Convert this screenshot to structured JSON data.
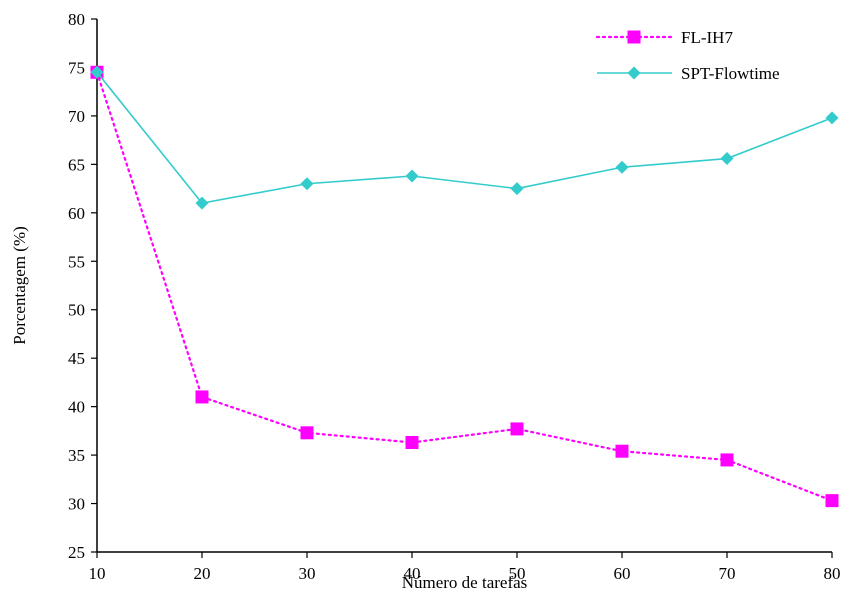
{
  "chart_data": {
    "type": "line",
    "xlabel": "Número de tarefas",
    "ylabel": "Porcentagem (%)",
    "x": [
      10,
      20,
      30,
      40,
      50,
      60,
      70,
      80
    ],
    "xlim": [
      10,
      80
    ],
    "ylim": [
      25,
      80
    ],
    "x_ticks": [
      "10",
      "20",
      "30",
      "40",
      "50",
      "60",
      "70",
      "80"
    ],
    "y_ticks": [
      "25",
      "30",
      "35",
      "40",
      "45",
      "50",
      "55",
      "60",
      "65",
      "70",
      "75",
      "80"
    ],
    "grid": false,
    "legend_position": "top-right",
    "series": [
      {
        "name": "FL-IH7",
        "values": [
          74.5,
          41.0,
          37.3,
          36.3,
          37.7,
          35.4,
          34.5,
          30.3
        ],
        "color": "#ff00ff",
        "line_style": "dotted",
        "marker": "square"
      },
      {
        "name": "SPT-Flowtime",
        "values": [
          74.5,
          61.0,
          63.0,
          63.8,
          62.5,
          64.7,
          65.6,
          69.8
        ],
        "color": "#33cccc",
        "line_style": "solid",
        "marker": "diamond"
      }
    ]
  }
}
